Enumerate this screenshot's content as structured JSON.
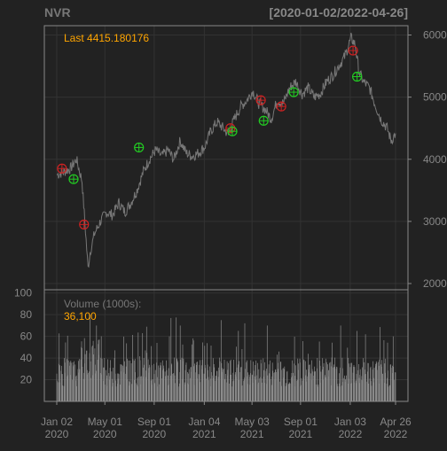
{
  "header": {
    "symbol": "NVR",
    "date_range": "[2020-01-02/2022-04-26]"
  },
  "colors": {
    "background": "#222222",
    "frame": "#888888",
    "grid": "#333333",
    "axis_text": "#888888",
    "title_text": "#777777",
    "price_line": "#777777",
    "volume_bars": "#8c8c8c",
    "highlight_text": "#ffa500",
    "buy_marker": "#22cc22",
    "sell_marker": "#cc2222"
  },
  "chart_data": [
    {
      "type": "line",
      "name": "price",
      "annotation": "Last 4415.180176",
      "y_ticks": [
        2000,
        3000,
        4000,
        5000,
        6000
      ],
      "ylim": [
        1900,
        6150
      ],
      "x_range": [
        "2020-01-02",
        "2022-04-26"
      ],
      "points": [
        [
          "2020-01-02",
          3750
        ],
        [
          "2020-01-20",
          3800
        ],
        [
          "2020-02-05",
          3850
        ],
        [
          "2020-02-20",
          4000
        ],
        [
          "2020-03-05",
          3650
        ],
        [
          "2020-03-12",
          3000
        ],
        [
          "2020-03-20",
          2250
        ],
        [
          "2020-03-25",
          2500
        ],
        [
          "2020-04-05",
          2800
        ],
        [
          "2020-04-20",
          3000
        ],
        [
          "2020-05-05",
          3150
        ],
        [
          "2020-05-20",
          3100
        ],
        [
          "2020-06-05",
          3300
        ],
        [
          "2020-06-20",
          3150
        ],
        [
          "2020-07-05",
          3300
        ],
        [
          "2020-07-20",
          3500
        ],
        [
          "2020-08-05",
          3800
        ],
        [
          "2020-08-20",
          4000
        ],
        [
          "2020-09-05",
          4150
        ],
        [
          "2020-09-20",
          4050
        ],
        [
          "2020-10-05",
          4150
        ],
        [
          "2020-10-20",
          4000
        ],
        [
          "2020-11-05",
          4300
        ],
        [
          "2020-11-20",
          4100
        ],
        [
          "2020-12-05",
          4050
        ],
        [
          "2020-12-20",
          4100
        ],
        [
          "2021-01-05",
          4200
        ],
        [
          "2021-01-20",
          4450
        ],
        [
          "2021-02-05",
          4600
        ],
        [
          "2021-02-20",
          4500
        ],
        [
          "2021-03-05",
          4400
        ],
        [
          "2021-03-20",
          4650
        ],
        [
          "2021-04-05",
          4850
        ],
        [
          "2021-04-20",
          4950
        ],
        [
          "2021-05-05",
          5100
        ],
        [
          "2021-05-20",
          4900
        ],
        [
          "2021-06-05",
          4800
        ],
        [
          "2021-06-20",
          4650
        ],
        [
          "2021-07-05",
          4950
        ],
        [
          "2021-07-20",
          4900
        ],
        [
          "2021-08-05",
          5150
        ],
        [
          "2021-08-20",
          5250
        ],
        [
          "2021-09-05",
          5050
        ],
        [
          "2021-09-20",
          5150
        ],
        [
          "2021-10-05",
          5000
        ],
        [
          "2021-10-20",
          5050
        ],
        [
          "2021-11-05",
          5250
        ],
        [
          "2021-11-20",
          5350
        ],
        [
          "2021-12-05",
          5500
        ],
        [
          "2021-12-20",
          5650
        ],
        [
          "2022-01-05",
          5950
        ],
        [
          "2022-01-15",
          5850
        ],
        [
          "2022-01-25",
          5400
        ],
        [
          "2022-02-05",
          5250
        ],
        [
          "2022-02-20",
          5150
        ],
        [
          "2022-03-05",
          4900
        ],
        [
          "2022-03-20",
          4650
        ],
        [
          "2022-04-05",
          4500
        ],
        [
          "2022-04-15",
          4300
        ],
        [
          "2022-04-26",
          4415.18
        ]
      ],
      "markers": [
        {
          "date": "2020-01-15",
          "value": 3850,
          "kind": "sell"
        },
        {
          "date": "2020-02-13",
          "value": 3680,
          "kind": "buy"
        },
        {
          "date": "2020-03-10",
          "value": 2950,
          "kind": "sell"
        },
        {
          "date": "2020-07-25",
          "value": 4190,
          "kind": "buy"
        },
        {
          "date": "2021-03-10",
          "value": 4500,
          "kind": "sell"
        },
        {
          "date": "2021-03-15",
          "value": 4450,
          "kind": "buy"
        },
        {
          "date": "2021-05-25",
          "value": 4950,
          "kind": "sell"
        },
        {
          "date": "2021-06-01",
          "value": 4620,
          "kind": "buy"
        },
        {
          "date": "2021-07-15",
          "value": 4850,
          "kind": "sell"
        },
        {
          "date": "2021-08-15",
          "value": 5080,
          "kind": "buy"
        },
        {
          "date": "2022-01-10",
          "value": 5750,
          "kind": "sell"
        },
        {
          "date": "2022-01-20",
          "value": 5330,
          "kind": "buy"
        }
      ]
    },
    {
      "type": "bar",
      "name": "volume",
      "label": "Volume (1000s):",
      "last_value": "36,100",
      "y_ticks": [
        20,
        40,
        60,
        80,
        100
      ],
      "ylim": [
        0,
        103
      ],
      "x_range": [
        "2020-01-02",
        "2022-04-26"
      ],
      "x_ticks": [
        {
          "date": "2020-01-02",
          "line1": "Jan 02",
          "line2": "2020"
        },
        {
          "date": "2020-05-01",
          "line1": "May 01",
          "line2": "2020"
        },
        {
          "date": "2020-09-01",
          "line1": "Sep 01",
          "line2": "2020"
        },
        {
          "date": "2021-01-04",
          "line1": "Jan 04",
          "line2": "2021"
        },
        {
          "date": "2021-05-03",
          "line1": "May 03",
          "line2": "2021"
        },
        {
          "date": "2021-09-01",
          "line1": "Sep 01",
          "line2": "2021"
        },
        {
          "date": "2022-01-03",
          "line1": "Jan 03",
          "line2": "2022"
        },
        {
          "date": "2022-04-26",
          "line1": "Apr 26",
          "line2": "2022"
        }
      ],
      "baseline": 30,
      "spikes": [
        [
          "2020-03-15",
          103
        ],
        [
          "2020-03-25",
          80
        ],
        [
          "2020-04-10",
          70
        ],
        [
          "2020-06-20",
          70
        ],
        [
          "2020-07-25",
          65
        ],
        [
          "2020-09-20",
          75
        ],
        [
          "2020-11-05",
          70
        ],
        [
          "2021-02-15",
          75
        ],
        [
          "2021-04-15",
          72
        ],
        [
          "2021-05-15",
          73
        ],
        [
          "2021-06-10",
          70
        ],
        [
          "2021-08-01",
          72
        ],
        [
          "2021-12-10",
          70
        ],
        [
          "2022-01-20",
          65
        ],
        [
          "2022-02-10",
          62
        ],
        [
          "2022-04-20",
          60
        ]
      ]
    }
  ]
}
